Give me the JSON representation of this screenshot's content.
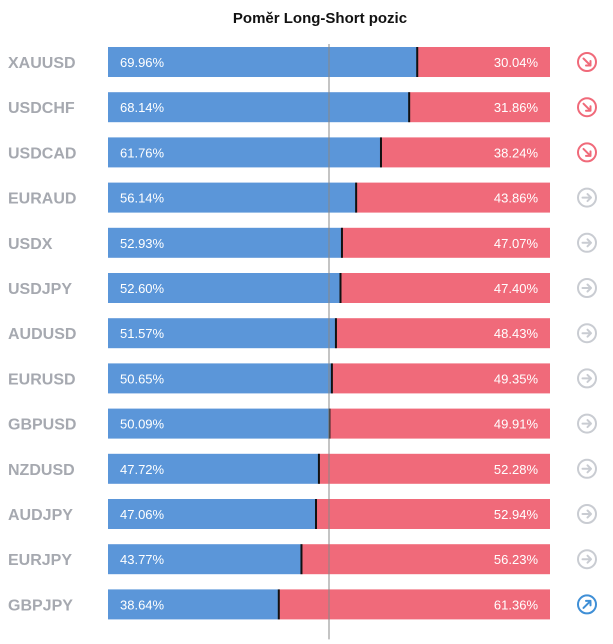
{
  "title": "Poměr Long-Short pozic",
  "colors": {
    "long": "#5b96d9",
    "short": "#f06a7a",
    "bearish_icon": "#f06a7a",
    "neutral_icon": "#c9ccd2",
    "bullish_icon": "#3f8fd6",
    "label": "#a6a9b0",
    "divider": "#111111"
  },
  "chart_data": {
    "type": "bar",
    "stacked": true,
    "orientation": "horizontal",
    "title": "Poměr Long-Short pozic",
    "categories": [
      "XAUUSD",
      "USDCHF",
      "USDCAD",
      "EURAUD",
      "USDX",
      "USDJPY",
      "AUDUSD",
      "EURUSD",
      "GBPUSD",
      "NZDUSD",
      "AUDJPY",
      "EURJPY",
      "GBPJPY"
    ],
    "series": [
      {
        "values": [
          69.96,
          68.14,
          61.76,
          56.14,
          52.93,
          52.6,
          51.57,
          50.65,
          50.09,
          47.72,
          47.06,
          43.77,
          38.64
        ]
      },
      {
        "values": [
          30.04,
          31.86,
          38.24,
          43.86,
          47.07,
          47.4,
          48.43,
          49.35,
          49.91,
          52.28,
          52.94,
          56.23,
          61.36
        ]
      }
    ],
    "long_labels": [
      "69.96%",
      "68.14%",
      "61.76%",
      "56.14%",
      "52.93%",
      "52.60%",
      "51.57%",
      "50.65%",
      "50.09%",
      "47.72%",
      "47.06%",
      "43.77%",
      "38.64%"
    ],
    "short_labels": [
      "30.04%",
      "31.86%",
      "38.24%",
      "43.86%",
      "47.07%",
      "47.40%",
      "48.43%",
      "49.35%",
      "49.91%",
      "52.28%",
      "52.94%",
      "56.23%",
      "61.36%"
    ],
    "signals": [
      "down",
      "down",
      "down",
      "right",
      "right",
      "right",
      "right",
      "right",
      "right",
      "right",
      "right",
      "right",
      "up"
    ],
    "signal_icons": [
      "arrow-down-right-icon",
      "arrow-down-right-icon",
      "arrow-down-right-icon",
      "arrow-right-icon",
      "arrow-right-icon",
      "arrow-right-icon",
      "arrow-right-icon",
      "arrow-right-icon",
      "arrow-right-icon",
      "arrow-right-icon",
      "arrow-right-icon",
      "arrow-right-icon",
      "arrow-up-right-icon"
    ],
    "xlim": [
      0,
      100
    ],
    "reference_line": 50,
    "grid": false
  }
}
